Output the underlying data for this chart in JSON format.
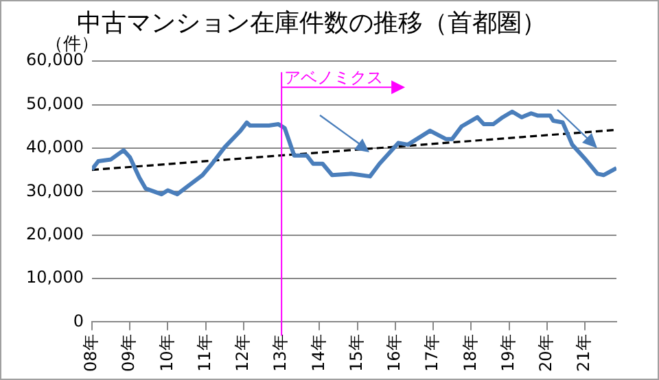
{
  "chart_data": {
    "type": "line",
    "title": "中古マンション在庫件数の推移（首都圏）",
    "ylabel": "（件）",
    "x": [
      "2008-01",
      "2008-03",
      "2008-07",
      "2008-11",
      "2009-01",
      "2009-04",
      "2009-06",
      "2009-11",
      "2010-01",
      "2010-04",
      "2010-08",
      "2010-12",
      "2011-03",
      "2011-07",
      "2011-12",
      "2012-02",
      "2012-03",
      "2012-09",
      "2012-12",
      "2013-02",
      "2013-05",
      "2013-09",
      "2013-11",
      "2014-02",
      "2014-05",
      "2014-11",
      "2015-05",
      "2015-08",
      "2016-02",
      "2016-05",
      "2016-12",
      "2017-05",
      "2017-07",
      "2017-10",
      "2018-03",
      "2018-05",
      "2018-08",
      "2018-11",
      "2019-02",
      "2019-05",
      "2019-08",
      "2019-10",
      "2020-02",
      "2020-03",
      "2020-06",
      "2020-09",
      "2021-01",
      "2021-05",
      "2021-07",
      "2021-11"
    ],
    "series": [
      {
        "color": "#4a7ebb",
        "values": [
          35100,
          37000,
          37400,
          39500,
          37900,
          33200,
          30700,
          29400,
          30300,
          29400,
          31600,
          33800,
          36400,
          40200,
          44000,
          45900,
          45200,
          45200,
          45500,
          44600,
          38300,
          38300,
          36400,
          36400,
          33800,
          34100,
          33500,
          36400,
          41200,
          40800,
          44000,
          42100,
          42100,
          45000,
          47100,
          45500,
          45500,
          47100,
          48400,
          47100,
          48000,
          47500,
          47500,
          46300,
          45900,
          40800,
          37600,
          34100,
          33800,
          35400
        ]
      },
      {
        "type": "line",
        "color": "#000000",
        "line_style": "dashed",
        "x": [
          "2008-01",
          "2021-11"
        ],
        "values": [
          35000,
          44200
        ]
      }
    ],
    "xlim": [
      "2008-01",
      "2021-11"
    ],
    "xticks": [
      {
        "value": "2008-01",
        "label": "08年"
      },
      {
        "value": "2009-01",
        "label": "09年"
      },
      {
        "value": "2010-01",
        "label": "10年"
      },
      {
        "value": "2011-01",
        "label": "11年"
      },
      {
        "value": "2012-01",
        "label": "12年"
      },
      {
        "value": "2013-01",
        "label": "13年"
      },
      {
        "value": "2014-01",
        "label": "14年"
      },
      {
        "value": "2015-01",
        "label": "15年"
      },
      {
        "value": "2016-01",
        "label": "16年"
      },
      {
        "value": "2017-01",
        "label": "17年"
      },
      {
        "value": "2018-01",
        "label": "18年"
      },
      {
        "value": "2019-01",
        "label": "19年"
      },
      {
        "value": "2020-01",
        "label": "20年"
      },
      {
        "value": "2021-01",
        "label": "21年"
      }
    ],
    "ylim": [
      0,
      60000
    ],
    "yticks": [
      {
        "value": 0,
        "label": "0"
      },
      {
        "value": 10000,
        "label": "10,000"
      },
      {
        "value": 20000,
        "label": "20,000"
      },
      {
        "value": 30000,
        "label": "30,000"
      },
      {
        "value": 40000,
        "label": "40,000"
      },
      {
        "value": 50000,
        "label": "50,000"
      },
      {
        "value": 60000,
        "label": "60,000"
      }
    ],
    "ref_lines": [
      {
        "axis": "x",
        "value": "2013-01",
        "label": "アベノミクス",
        "color": "#ff00ff"
      }
    ],
    "grid": "y",
    "legend": false,
    "marker": "none"
  }
}
